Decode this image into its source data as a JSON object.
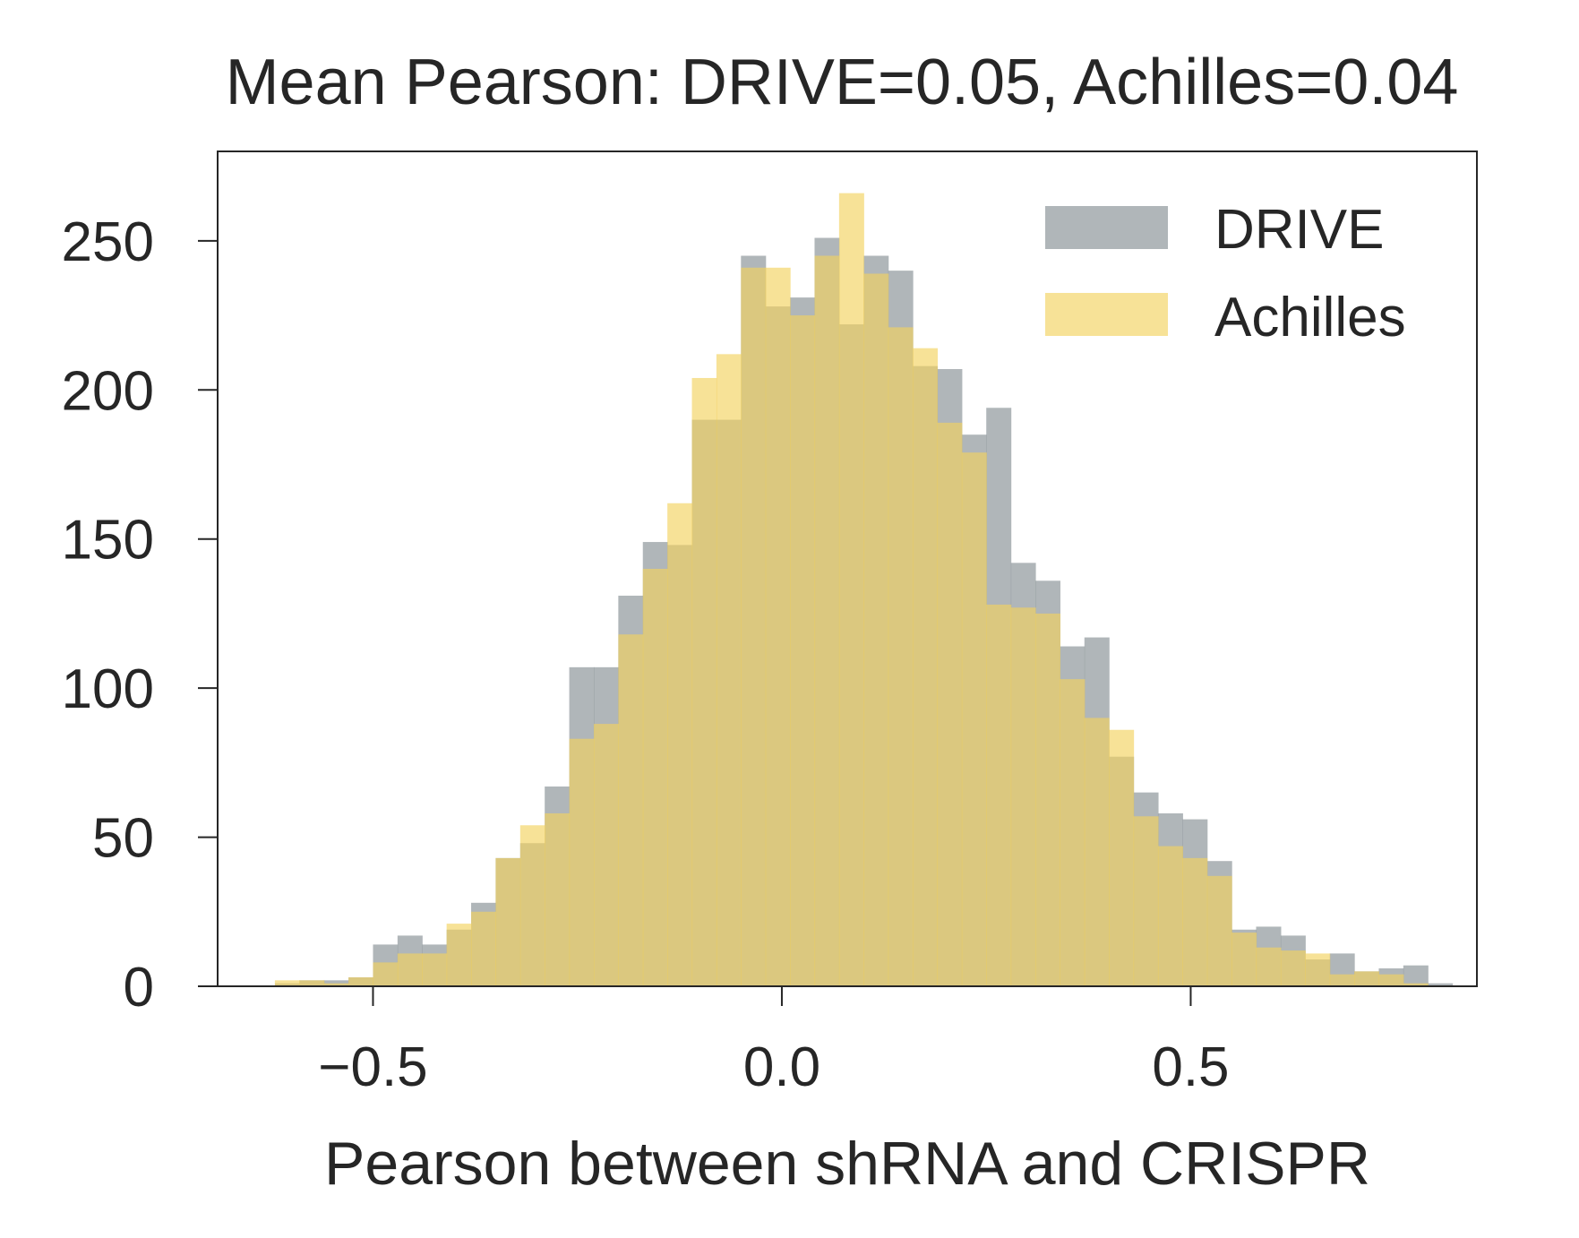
{
  "chart_data": {
    "type": "bar",
    "title": "Mean Pearson: DRIVE=0.05, Achilles=0.04",
    "xlabel": "Pearson between shRNA and CRISPR",
    "ylabel": "",
    "xlim": [
      -0.69,
      0.85
    ],
    "ylim": [
      0,
      280
    ],
    "xticks": [
      -0.5,
      0.0,
      0.5
    ],
    "xtick_labels": [
      "−0.5",
      "0.0",
      "0.5"
    ],
    "yticks": [
      0,
      50,
      100,
      150,
      200,
      250
    ],
    "ytick_labels": [
      "0",
      "50",
      "100",
      "150",
      "200",
      "250"
    ],
    "grid": false,
    "legend_position": "top-right",
    "series": [
      {
        "name": "DRIVE",
        "color": "#959ea2",
        "bins": [
          {
            "x0": -0.62,
            "x1": -0.59,
            "value": 1
          },
          {
            "x0": -0.59,
            "x1": -0.56,
            "value": 2
          },
          {
            "x0": -0.56,
            "x1": -0.53,
            "value": 2
          },
          {
            "x0": -0.53,
            "x1": -0.5,
            "value": 3
          },
          {
            "x0": -0.5,
            "x1": -0.47,
            "value": 14
          },
          {
            "x0": -0.47,
            "x1": -0.44,
            "value": 17
          },
          {
            "x0": -0.44,
            "x1": -0.41,
            "value": 14
          },
          {
            "x0": -0.41,
            "x1": -0.38,
            "value": 19
          },
          {
            "x0": -0.38,
            "x1": -0.35,
            "value": 28
          },
          {
            "x0": -0.35,
            "x1": -0.32,
            "value": 43
          },
          {
            "x0": -0.32,
            "x1": -0.29,
            "value": 48
          },
          {
            "x0": -0.29,
            "x1": -0.26,
            "value": 67
          },
          {
            "x0": -0.26,
            "x1": -0.23,
            "value": 107
          },
          {
            "x0": -0.23,
            "x1": -0.2,
            "value": 107
          },
          {
            "x0": -0.2,
            "x1": -0.17,
            "value": 131
          },
          {
            "x0": -0.17,
            "x1": -0.14,
            "value": 149
          },
          {
            "x0": -0.14,
            "x1": -0.11,
            "value": 148
          },
          {
            "x0": -0.11,
            "x1": -0.08,
            "value": 190
          },
          {
            "x0": -0.08,
            "x1": -0.05,
            "value": 190
          },
          {
            "x0": -0.05,
            "x1": -0.02,
            "value": 245
          },
          {
            "x0": -0.02,
            "x1": 0.01,
            "value": 228
          },
          {
            "x0": 0.01,
            "x1": 0.04,
            "value": 231
          },
          {
            "x0": 0.04,
            "x1": 0.07,
            "value": 251
          },
          {
            "x0": 0.07,
            "x1": 0.1,
            "value": 222
          },
          {
            "x0": 0.1,
            "x1": 0.13,
            "value": 245
          },
          {
            "x0": 0.13,
            "x1": 0.16,
            "value": 240
          },
          {
            "x0": 0.16,
            "x1": 0.19,
            "value": 208
          },
          {
            "x0": 0.19,
            "x1": 0.22,
            "value": 207
          },
          {
            "x0": 0.22,
            "x1": 0.25,
            "value": 185
          },
          {
            "x0": 0.25,
            "x1": 0.28,
            "value": 194
          },
          {
            "x0": 0.28,
            "x1": 0.31,
            "value": 142
          },
          {
            "x0": 0.31,
            "x1": 0.34,
            "value": 136
          },
          {
            "x0": 0.34,
            "x1": 0.37,
            "value": 114
          },
          {
            "x0": 0.37,
            "x1": 0.4,
            "value": 117
          },
          {
            "x0": 0.4,
            "x1": 0.43,
            "value": 77
          },
          {
            "x0": 0.43,
            "x1": 0.46,
            "value": 65
          },
          {
            "x0": 0.46,
            "x1": 0.49,
            "value": 58
          },
          {
            "x0": 0.49,
            "x1": 0.52,
            "value": 56
          },
          {
            "x0": 0.52,
            "x1": 0.55,
            "value": 42
          },
          {
            "x0": 0.55,
            "x1": 0.58,
            "value": 19
          },
          {
            "x0": 0.58,
            "x1": 0.61,
            "value": 20
          },
          {
            "x0": 0.61,
            "x1": 0.64,
            "value": 17
          },
          {
            "x0": 0.64,
            "x1": 0.67,
            "value": 9
          },
          {
            "x0": 0.67,
            "x1": 0.7,
            "value": 11
          },
          {
            "x0": 0.7,
            "x1": 0.73,
            "value": 5
          },
          {
            "x0": 0.73,
            "x1": 0.76,
            "value": 6
          },
          {
            "x0": 0.76,
            "x1": 0.79,
            "value": 7
          },
          {
            "x0": 0.79,
            "x1": 0.82,
            "value": 1
          }
        ]
      },
      {
        "name": "Achilles",
        "color": "#f2d35f",
        "bins": [
          {
            "x0": -0.62,
            "x1": -0.59,
            "value": 2
          },
          {
            "x0": -0.59,
            "x1": -0.56,
            "value": 2
          },
          {
            "x0": -0.56,
            "x1": -0.53,
            "value": 1
          },
          {
            "x0": -0.53,
            "x1": -0.5,
            "value": 3
          },
          {
            "x0": -0.5,
            "x1": -0.47,
            "value": 8
          },
          {
            "x0": -0.47,
            "x1": -0.44,
            "value": 11
          },
          {
            "x0": -0.44,
            "x1": -0.41,
            "value": 11
          },
          {
            "x0": -0.41,
            "x1": -0.38,
            "value": 21
          },
          {
            "x0": -0.38,
            "x1": -0.35,
            "value": 25
          },
          {
            "x0": -0.35,
            "x1": -0.32,
            "value": 43
          },
          {
            "x0": -0.32,
            "x1": -0.29,
            "value": 54
          },
          {
            "x0": -0.29,
            "x1": -0.26,
            "value": 58
          },
          {
            "x0": -0.26,
            "x1": -0.23,
            "value": 83
          },
          {
            "x0": -0.23,
            "x1": -0.2,
            "value": 88
          },
          {
            "x0": -0.2,
            "x1": -0.17,
            "value": 118
          },
          {
            "x0": -0.17,
            "x1": -0.14,
            "value": 140
          },
          {
            "x0": -0.14,
            "x1": -0.11,
            "value": 162
          },
          {
            "x0": -0.11,
            "x1": -0.08,
            "value": 204
          },
          {
            "x0": -0.08,
            "x1": -0.05,
            "value": 212
          },
          {
            "x0": -0.05,
            "x1": -0.02,
            "value": 241
          },
          {
            "x0": -0.02,
            "x1": 0.01,
            "value": 241
          },
          {
            "x0": 0.01,
            "x1": 0.04,
            "value": 225
          },
          {
            "x0": 0.04,
            "x1": 0.07,
            "value": 245
          },
          {
            "x0": 0.07,
            "x1": 0.1,
            "value": 266
          },
          {
            "x0": 0.1,
            "x1": 0.13,
            "value": 239
          },
          {
            "x0": 0.13,
            "x1": 0.16,
            "value": 221
          },
          {
            "x0": 0.16,
            "x1": 0.19,
            "value": 214
          },
          {
            "x0": 0.19,
            "x1": 0.22,
            "value": 189
          },
          {
            "x0": 0.22,
            "x1": 0.25,
            "value": 179
          },
          {
            "x0": 0.25,
            "x1": 0.28,
            "value": 128
          },
          {
            "x0": 0.28,
            "x1": 0.31,
            "value": 127
          },
          {
            "x0": 0.31,
            "x1": 0.34,
            "value": 125
          },
          {
            "x0": 0.34,
            "x1": 0.37,
            "value": 103
          },
          {
            "x0": 0.37,
            "x1": 0.4,
            "value": 90
          },
          {
            "x0": 0.4,
            "x1": 0.43,
            "value": 86
          },
          {
            "x0": 0.43,
            "x1": 0.46,
            "value": 57
          },
          {
            "x0": 0.46,
            "x1": 0.49,
            "value": 47
          },
          {
            "x0": 0.49,
            "x1": 0.52,
            "value": 43
          },
          {
            "x0": 0.52,
            "x1": 0.55,
            "value": 37
          },
          {
            "x0": 0.55,
            "x1": 0.58,
            "value": 18
          },
          {
            "x0": 0.58,
            "x1": 0.61,
            "value": 13
          },
          {
            "x0": 0.61,
            "x1": 0.64,
            "value": 12
          },
          {
            "x0": 0.64,
            "x1": 0.67,
            "value": 11
          },
          {
            "x0": 0.67,
            "x1": 0.7,
            "value": 4
          },
          {
            "x0": 0.7,
            "x1": 0.73,
            "value": 5
          },
          {
            "x0": 0.73,
            "x1": 0.76,
            "value": 4
          },
          {
            "x0": 0.76,
            "x1": 0.79,
            "value": 1
          },
          {
            "x0": 0.79,
            "x1": 0.82,
            "value": 0
          }
        ]
      }
    ]
  }
}
